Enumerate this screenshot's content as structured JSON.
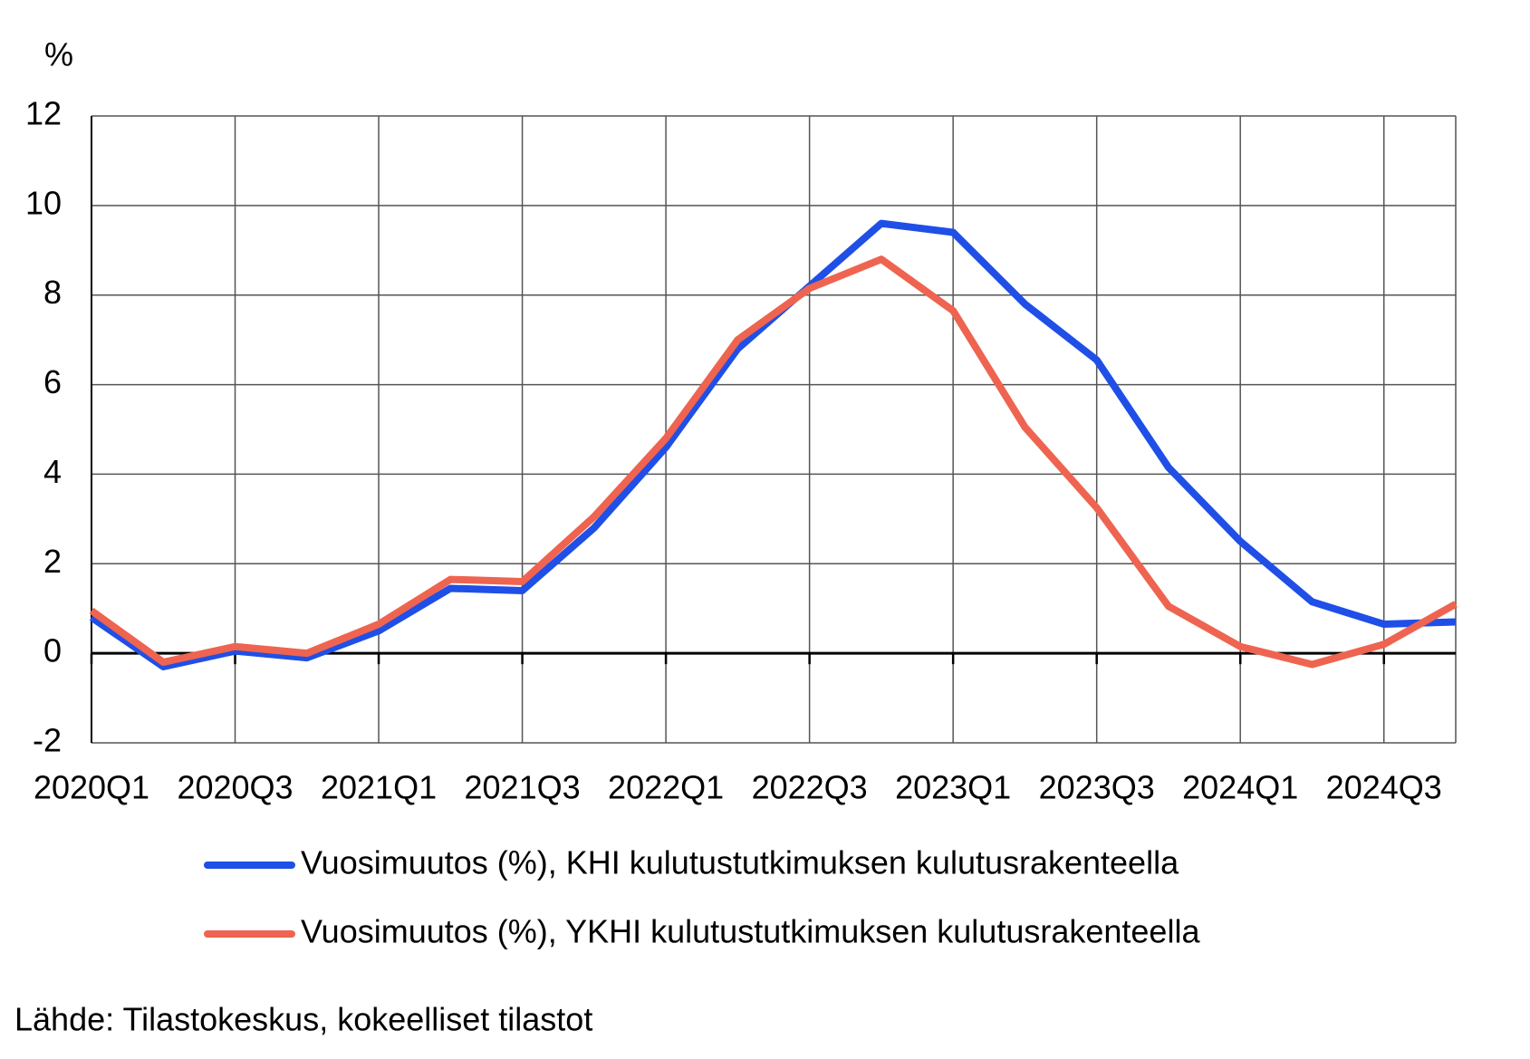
{
  "chart_data": {
    "type": "line",
    "y_unit": "%",
    "categories": [
      "2020Q1",
      null,
      "2020Q3",
      null,
      "2021Q1",
      null,
      "2021Q3",
      null,
      "2022Q1",
      null,
      "2022Q3",
      null,
      "2023Q1",
      null,
      "2023Q3",
      null,
      "2024Q1",
      null,
      "2024Q3",
      null
    ],
    "series": [
      {
        "name": "Vuosimuutos (%), KHI kulutustutkimuksen kulutusrakenteella",
        "color": "#1f4fe6",
        "values": [
          0.8,
          -0.3,
          0.05,
          -0.1,
          0.5,
          1.45,
          1.4,
          2.8,
          4.6,
          6.8,
          8.2,
          9.6,
          9.4,
          7.8,
          6.55,
          4.15,
          2.5,
          1.15,
          0.65,
          0.7
        ]
      },
      {
        "name": "Vuosimuutos (%), YKHI kulutustutkimuksen kulutusrakenteella",
        "color": "#ee6450",
        "values": [
          0.95,
          -0.2,
          0.15,
          0.0,
          0.65,
          1.65,
          1.6,
          3.05,
          4.8,
          7.0,
          8.15,
          8.8,
          7.65,
          5.05,
          3.25,
          1.05,
          0.15,
          -0.25,
          0.2,
          1.1
        ]
      }
    ],
    "ylim": [
      -2,
      12
    ],
    "yticks": [
      -2,
      0,
      2,
      4,
      6,
      8,
      10,
      12
    ],
    "grid": true,
    "source": "Lähde: Tilastokeskus, kokeelliset tilastot"
  }
}
